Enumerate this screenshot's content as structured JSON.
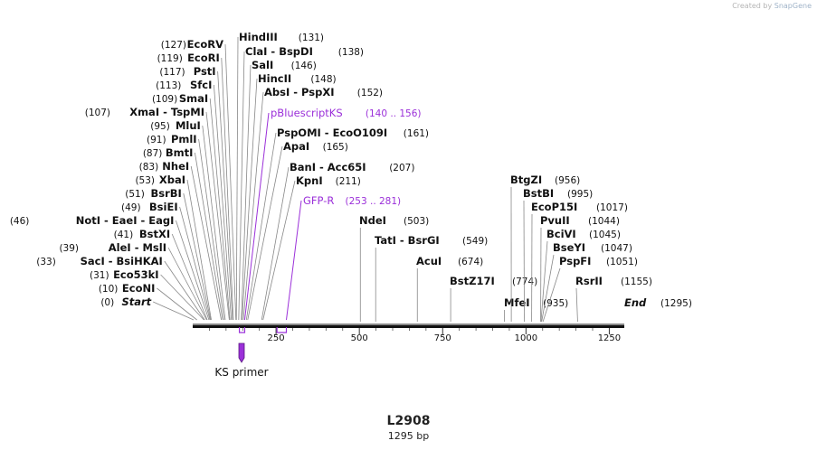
{
  "credit": {
    "prefix": "Created by",
    "brand": "SnapGene"
  },
  "sequence": {
    "name": "L2908",
    "length_label": "1295 bp",
    "length": 1295
  },
  "axis_ticks": [
    {
      "value": 250,
      "label": "250"
    },
    {
      "value": 500,
      "label": "500"
    },
    {
      "value": 750,
      "label": "750"
    },
    {
      "value": 1000,
      "label": "1000"
    },
    {
      "value": 1250,
      "label": "1250"
    }
  ],
  "left_sites": [
    {
      "pos": "(127)",
      "name": "EcoRV",
      "bp": 127
    },
    {
      "pos": "(119)",
      "name": "EcoRI",
      "bp": 119
    },
    {
      "pos": "(117)",
      "name": "PstI",
      "bp": 117
    },
    {
      "pos": "(113)",
      "name": "SfcI",
      "bp": 113
    },
    {
      "pos": "(109)",
      "name": "SmaI",
      "bp": 109
    },
    {
      "pos": "(107)",
      "name": "XmaI  -  TspMI",
      "bp": 107
    },
    {
      "pos": "(95)",
      "name": "MluI",
      "bp": 95
    },
    {
      "pos": "(91)",
      "name": "PmlI",
      "bp": 91
    },
    {
      "pos": "(87)",
      "name": "BmtI",
      "bp": 87
    },
    {
      "pos": "(83)",
      "name": "NheI",
      "bp": 83
    },
    {
      "pos": "(53)",
      "name": "XbaI",
      "bp": 53
    },
    {
      "pos": "(51)",
      "name": "BsrBI",
      "bp": 51
    },
    {
      "pos": "(49)",
      "name": "BsiEI",
      "bp": 49
    },
    {
      "pos": "(46)",
      "name": "NotI  -  EaeI  -  EagI",
      "bp": 46
    },
    {
      "pos": "(41)",
      "name": "BstXI",
      "bp": 41
    },
    {
      "pos": "(39)",
      "name": "AleI  -  MslI",
      "bp": 39
    },
    {
      "pos": "(33)",
      "name": "SacI  -  BsiHKAI",
      "bp": 33
    },
    {
      "pos": "(31)",
      "name": "Eco53kI",
      "bp": 31
    },
    {
      "pos": "(10)",
      "name": "EcoNI",
      "bp": 10
    },
    {
      "pos": "(0)",
      "name": "Start",
      "bp": 0
    }
  ],
  "upper_sites": [
    {
      "name": "HindIII",
      "pos": "(131)",
      "bp": 131
    },
    {
      "name": "ClaI  -  BspDI",
      "pos": "(138)",
      "bp": 138
    },
    {
      "name": "SalI",
      "pos": "(146)",
      "bp": 146
    },
    {
      "name": "HincII",
      "pos": "(148)",
      "bp": 148
    },
    {
      "name": "AbsI  -  PspXI",
      "pos": "(152)",
      "bp": 152
    },
    {
      "name": "PspOMI  -  EcoO109I",
      "pos": "(161)",
      "bp": 161
    },
    {
      "name": "ApaI",
      "pos": "(165)",
      "bp": 165
    },
    {
      "name": "BanI  -  Acc65I",
      "pos": "(207)",
      "bp": 207
    },
    {
      "name": "KpnI",
      "pos": "(211)",
      "bp": 211
    }
  ],
  "mid_sites": [
    {
      "name": "NdeI",
      "pos": "(503)",
      "bp": 503
    },
    {
      "name": "TatI  -  BsrGI",
      "pos": "(549)",
      "bp": 549
    },
    {
      "name": "AcuI",
      "pos": "(674)",
      "bp": 674
    },
    {
      "name": "BstZ17I",
      "pos": "(774)",
      "bp": 774
    },
    {
      "name": "MfeI",
      "pos": "(935)",
      "bp": 935
    }
  ],
  "right_sites": [
    {
      "name": "BtgZI",
      "pos": "(956)",
      "bp": 956
    },
    {
      "name": "BstBI",
      "pos": "(995)",
      "bp": 995
    },
    {
      "name": "EcoP15I",
      "pos": "(1017)",
      "bp": 1017
    },
    {
      "name": "PvuII",
      "pos": "(1044)",
      "bp": 1044
    },
    {
      "name": "BciVI",
      "pos": "(1045)",
      "bp": 1045
    },
    {
      "name": "BseYI",
      "pos": "(1047)",
      "bp": 1047
    },
    {
      "name": "PspFI",
      "pos": "(1051)",
      "bp": 1051
    },
    {
      "name": "RsrII",
      "pos": "(1155)",
      "bp": 1155
    },
    {
      "name": "End",
      "pos": "(1295)",
      "bp": 1295
    }
  ],
  "primers": [
    {
      "name": "pBluescriptKS",
      "range": "(140 .. 156)",
      "start": 140,
      "end": 156
    },
    {
      "name": "GFP-R",
      "range": "(253 .. 281)",
      "start": 253,
      "end": 281
    }
  ],
  "features": [
    {
      "name": "KS primer"
    }
  ],
  "colors": {
    "primer": "#9b30d9",
    "line": "#888888",
    "backbone": "#111111",
    "text": "#111111"
  }
}
